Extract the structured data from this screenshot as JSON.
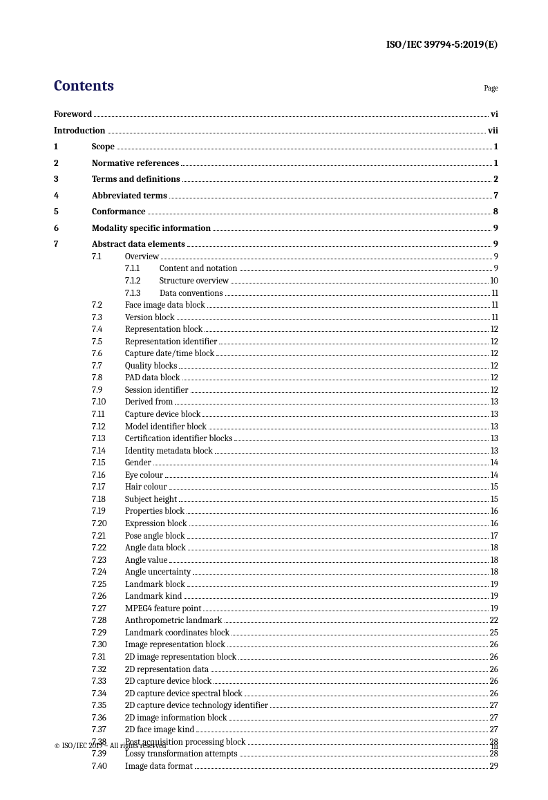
{
  "header": "ISO/IEC 39794-5:2019(E)",
  "contents_title": "Contents",
  "page_label": "Page",
  "footer_left": "© ISO/IEC 2019 – All rights reserved",
  "footer_right": "iii",
  "toc": [
    {
      "type": "front",
      "label": "Foreword",
      "page": "vi",
      "bold": true,
      "gap": false
    },
    {
      "type": "front",
      "label": "Introduction",
      "page": "vii",
      "bold": true,
      "gap": true
    },
    {
      "type": "l1",
      "num": "1",
      "label": "Scope",
      "page": "1",
      "bold": true,
      "gap": true
    },
    {
      "type": "l1",
      "num": "2",
      "label": "Normative references",
      "page": "1",
      "bold": true,
      "gap": true
    },
    {
      "type": "l1",
      "num": "3",
      "label": "Terms and definitions",
      "page": "2",
      "bold": true,
      "gap": true
    },
    {
      "type": "l1",
      "num": "4",
      "label": "Abbreviated terms",
      "page": "7",
      "bold": true,
      "gap": true
    },
    {
      "type": "l1",
      "num": "5",
      "label": "Conformance",
      "page": "8",
      "bold": true,
      "gap": true
    },
    {
      "type": "l1",
      "num": "6",
      "label": "Modality specific information",
      "page": "9",
      "bold": true,
      "gap": true
    },
    {
      "type": "l1",
      "num": "7",
      "label": "Abstract data elements",
      "page": "9",
      "bold": true,
      "gap": true
    },
    {
      "type": "l2",
      "num": "7.1",
      "label": "Overview",
      "page": "9"
    },
    {
      "type": "l3",
      "num": "7.1.1",
      "label": "Content and notation",
      "page": "9"
    },
    {
      "type": "l3",
      "num": "7.1.2",
      "label": "Structure overview",
      "page": "10"
    },
    {
      "type": "l3",
      "num": "7.1.3",
      "label": "Data conventions",
      "page": "11"
    },
    {
      "type": "l2",
      "num": "7.2",
      "label": "Face image data block",
      "page": "11"
    },
    {
      "type": "l2",
      "num": "7.3",
      "label": "Version block",
      "page": "11"
    },
    {
      "type": "l2",
      "num": "7.4",
      "label": "Representation block",
      "page": "12"
    },
    {
      "type": "l2",
      "num": "7.5",
      "label": "Representation identifier",
      "page": "12"
    },
    {
      "type": "l2",
      "num": "7.6",
      "label": "Capture date/time block",
      "page": "12"
    },
    {
      "type": "l2",
      "num": "7.7",
      "label": "Quality blocks",
      "page": "12"
    },
    {
      "type": "l2",
      "num": "7.8",
      "label": "PAD data block",
      "page": "12"
    },
    {
      "type": "l2",
      "num": "7.9",
      "label": "Session identifier",
      "page": "12"
    },
    {
      "type": "l2",
      "num": "7.10",
      "label": "Derived from",
      "page": "13"
    },
    {
      "type": "l2",
      "num": "7.11",
      "label": "Capture device block",
      "page": "13"
    },
    {
      "type": "l2",
      "num": "7.12",
      "label": "Model identifier block",
      "page": "13"
    },
    {
      "type": "l2",
      "num": "7.13",
      "label": "Certification identifier blocks",
      "page": "13"
    },
    {
      "type": "l2",
      "num": "7.14",
      "label": "Identity metadata block",
      "page": "13"
    },
    {
      "type": "l2",
      "num": "7.15",
      "label": "Gender",
      "page": "14"
    },
    {
      "type": "l2",
      "num": "7.16",
      "label": "Eye colour",
      "page": "14"
    },
    {
      "type": "l2",
      "num": "7.17",
      "label": "Hair colour",
      "page": "15"
    },
    {
      "type": "l2",
      "num": "7.18",
      "label": "Subject height",
      "page": "15"
    },
    {
      "type": "l2",
      "num": "7.19",
      "label": "Properties block",
      "page": "16"
    },
    {
      "type": "l2",
      "num": "7.20",
      "label": "Expression block",
      "page": "16"
    },
    {
      "type": "l2",
      "num": "7.21",
      "label": "Pose angle block",
      "page": "17"
    },
    {
      "type": "l2",
      "num": "7.22",
      "label": "Angle data block",
      "page": "18"
    },
    {
      "type": "l2",
      "num": "7.23",
      "label": "Angle value",
      "page": "18"
    },
    {
      "type": "l2",
      "num": "7.24",
      "label": "Angle uncertainty",
      "page": "18"
    },
    {
      "type": "l2",
      "num": "7.25",
      "label": "Landmark block",
      "page": "19"
    },
    {
      "type": "l2",
      "num": "7.26",
      "label": "Landmark kind",
      "page": "19"
    },
    {
      "type": "l2",
      "num": "7.27",
      "label": "MPEG4 feature point",
      "page": "19"
    },
    {
      "type": "l2",
      "num": "7.28",
      "label": "Anthropometric landmark",
      "page": "22"
    },
    {
      "type": "l2",
      "num": "7.29",
      "label": "Landmark coordinates block",
      "page": "25"
    },
    {
      "type": "l2",
      "num": "7.30",
      "label": "Image representation block",
      "page": "26"
    },
    {
      "type": "l2",
      "num": "7.31",
      "label": "2D image representation block",
      "page": "26"
    },
    {
      "type": "l2",
      "num": "7.32",
      "label": "2D representation data",
      "page": "26"
    },
    {
      "type": "l2",
      "num": "7.33",
      "label": "2D capture device block",
      "page": "26"
    },
    {
      "type": "l2",
      "num": "7.34",
      "label": "2D capture device spectral block",
      "page": "26"
    },
    {
      "type": "l2",
      "num": "7.35",
      "label": "2D capture device technology identifier",
      "page": "27"
    },
    {
      "type": "l2",
      "num": "7.36",
      "label": "2D image information block",
      "page": "27"
    },
    {
      "type": "l2",
      "num": "7.37",
      "label": "2D face image kind",
      "page": "27"
    },
    {
      "type": "l2",
      "num": "7.38",
      "label": "Post acquisition processing block",
      "page": "28"
    },
    {
      "type": "l2",
      "num": "7.39",
      "label": "Lossy transformation attempts",
      "page": "28"
    },
    {
      "type": "l2",
      "num": "7.40",
      "label": "Image data format",
      "page": "29"
    }
  ]
}
